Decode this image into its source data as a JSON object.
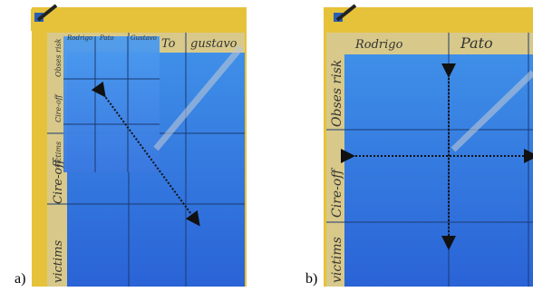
{
  "panel_a": {
    "label": "a)",
    "overlay_columns": [
      "Rodrigo",
      "Pato",
      "Gustavo"
    ],
    "columns": [
      "To",
      "gustavo"
    ],
    "overlay_rows": [
      "Obses risk",
      "Cire-off",
      "victims"
    ],
    "rows": [
      "Cire-off",
      "victims"
    ]
  },
  "panel_b": {
    "label": "b)",
    "columns": [
      "Rodrigo",
      "Pato"
    ],
    "rows": [
      "Obses risk",
      "Cire-off",
      "victims"
    ]
  }
}
